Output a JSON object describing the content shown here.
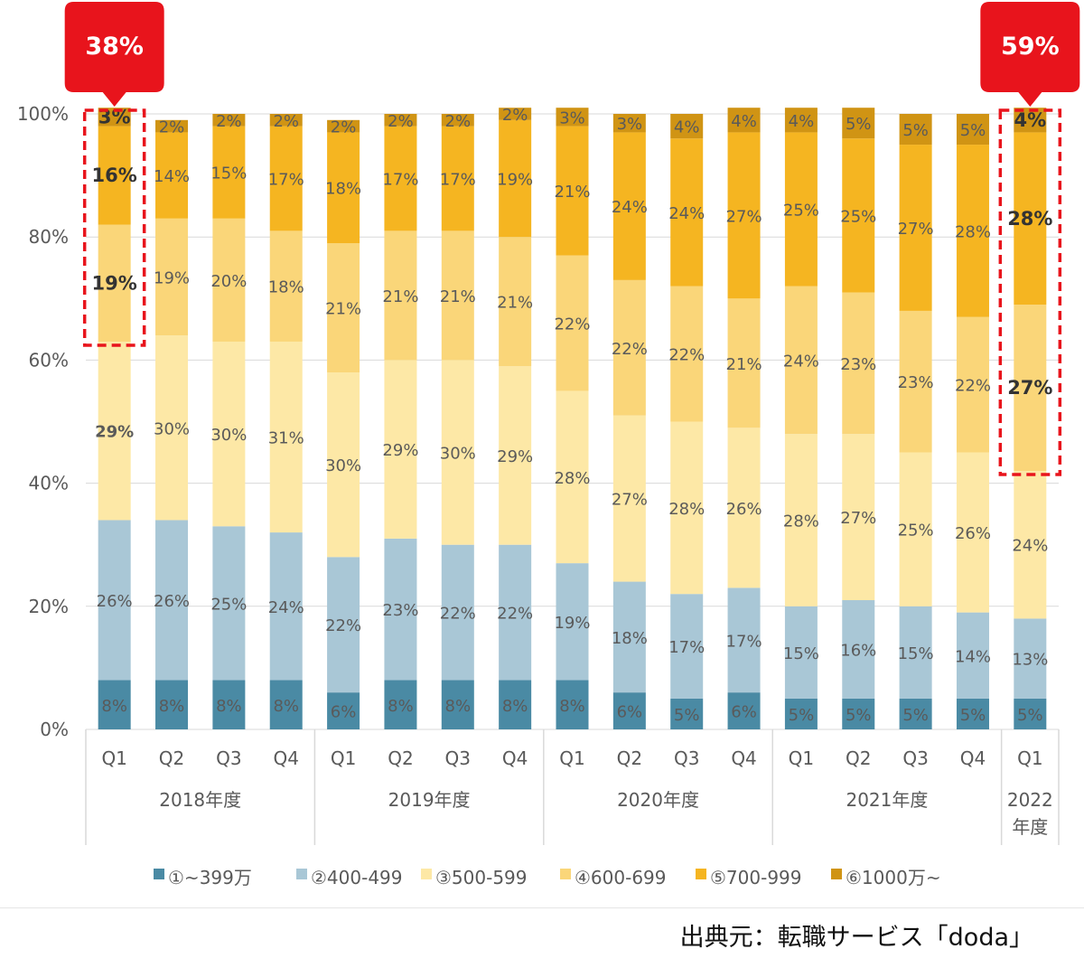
{
  "chart_data": {
    "type": "bar",
    "stacked": true,
    "ylim": [
      0,
      100
    ],
    "ytick_labels": [
      "0%",
      "20%",
      "40%",
      "60%",
      "80%",
      "100%"
    ],
    "yticks": [
      0,
      20,
      40,
      60,
      80,
      100
    ],
    "grid": true,
    "legend_position": "bottom",
    "categories": [
      "Q1",
      "Q2",
      "Q3",
      "Q4",
      "Q1",
      "Q2",
      "Q3",
      "Q4",
      "Q1",
      "Q2",
      "Q3",
      "Q4",
      "Q1",
      "Q2",
      "Q3",
      "Q4",
      "Q1"
    ],
    "groups": [
      {
        "label": "2018年度",
        "count": 4
      },
      {
        "label": "2019年度",
        "count": 4
      },
      {
        "label": "2020年度",
        "count": 4
      },
      {
        "label": "2021年度",
        "count": 4
      },
      {
        "label": "2022\n年度",
        "count": 1
      }
    ],
    "series": [
      {
        "name": "①~399万",
        "color": "#4a8aa4",
        "values": [
          8,
          8,
          8,
          8,
          6,
          8,
          8,
          8,
          8,
          6,
          5,
          6,
          5,
          5,
          5,
          5,
          5
        ]
      },
      {
        "name": "②400-499",
        "color": "#a9c7d6",
        "values": [
          26,
          26,
          25,
          24,
          22,
          23,
          22,
          22,
          19,
          18,
          17,
          17,
          15,
          16,
          15,
          14,
          13
        ]
      },
      {
        "name": "③500-599",
        "color": "#fde8a6",
        "values": [
          29,
          30,
          30,
          31,
          30,
          29,
          30,
          29,
          28,
          27,
          28,
          26,
          28,
          27,
          25,
          26,
          24
        ]
      },
      {
        "name": "④600-699",
        "color": "#fad679",
        "values": [
          19,
          19,
          20,
          18,
          21,
          21,
          21,
          21,
          22,
          22,
          22,
          21,
          24,
          23,
          23,
          22,
          27
        ]
      },
      {
        "name": "⑤700-999",
        "color": "#f5b521",
        "values": [
          16,
          14,
          15,
          17,
          18,
          17,
          17,
          19,
          21,
          24,
          24,
          27,
          25,
          25,
          27,
          28,
          28
        ]
      },
      {
        "name": "⑥1000万~",
        "color": "#d09414",
        "values": [
          3,
          2,
          2,
          2,
          2,
          2,
          2,
          2,
          3,
          3,
          4,
          4,
          4,
          5,
          5,
          5,
          4
        ]
      }
    ],
    "callouts": [
      {
        "text": "38%",
        "bar_index": 0,
        "highlight_series": [
          3,
          4,
          5
        ]
      },
      {
        "text": "59%",
        "bar_index": 16,
        "highlight_series": [
          3,
          4,
          5
        ]
      }
    ],
    "colors": {
      "callout": "#e8141c",
      "grid": "#d9d9d9",
      "axis_text": "#595959",
      "label_text": "#5a5a5a"
    }
  },
  "source": "出典元：転職サービス「doda」"
}
